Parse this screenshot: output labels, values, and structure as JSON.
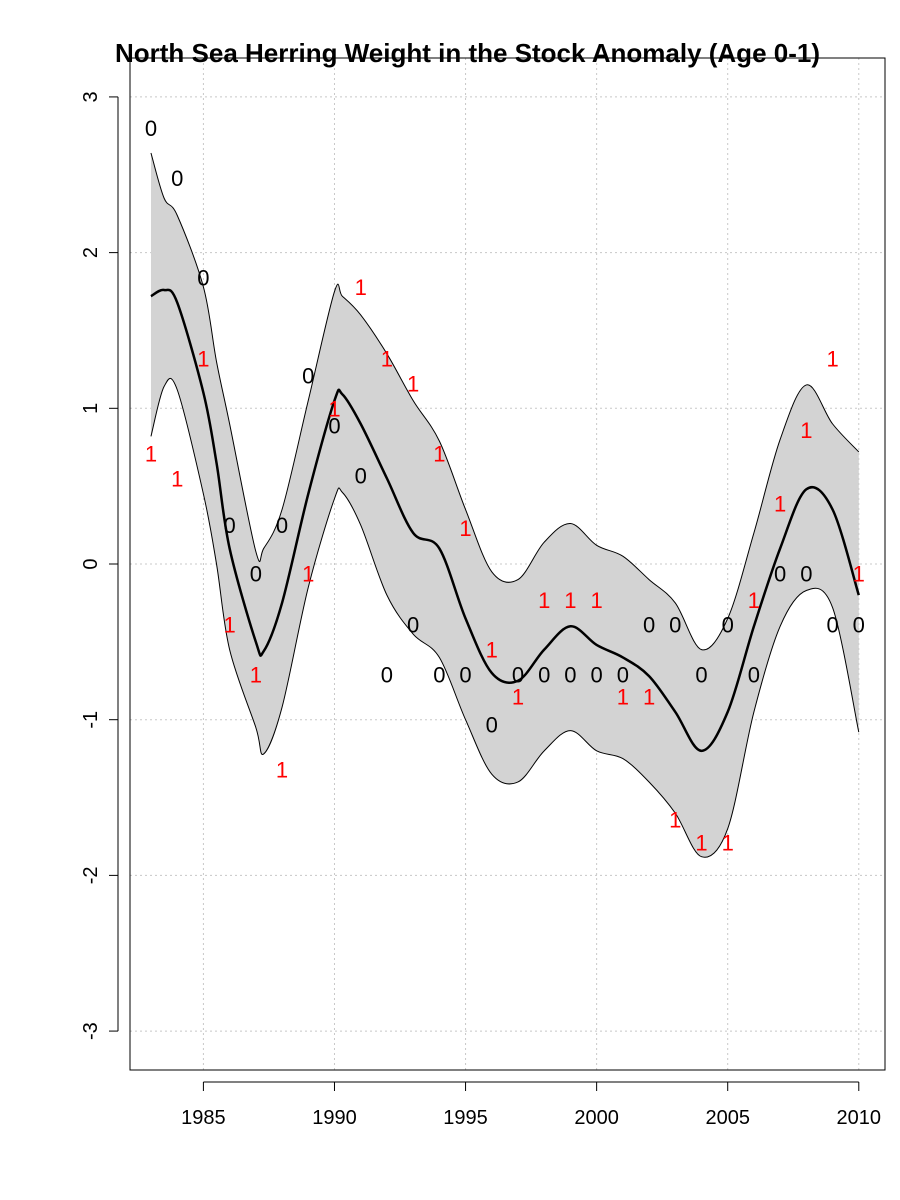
{
  "chart_data": {
    "type": "scatter",
    "title": "North Sea Herring Weight in the Stock Anomaly (Age 0-1)",
    "xlabel": "",
    "ylabel": "",
    "xlim": [
      1982.2,
      2011.0
    ],
    "ylim": [
      -3.25,
      3.25
    ],
    "x_ticks": [
      1985,
      1990,
      1995,
      2000,
      2005,
      2010
    ],
    "y_ticks": [
      -3,
      -2,
      -1,
      0,
      1,
      2,
      3
    ],
    "grid": true,
    "colors": {
      "label_0": "#000000",
      "label_1": "#ff0000",
      "band": "#d3d3d3",
      "grid": "#c8c8c8"
    },
    "series": [
      {
        "label": "0",
        "x": [
          1983,
          1984,
          1985,
          1986,
          1987,
          1988,
          1989,
          1990,
          1991,
          1992,
          1993,
          1994,
          1995,
          1996,
          1997,
          1998,
          1999,
          2000,
          2001,
          2002,
          2003,
          2004,
          2005,
          2006,
          2007,
          2008,
          2009,
          2010
        ],
        "y": [
          2.8,
          2.48,
          1.84,
          0.25,
          -0.06,
          0.25,
          1.21,
          0.89,
          0.57,
          -0.71,
          -0.39,
          -0.71,
          -0.71,
          -1.03,
          -0.71,
          -0.71,
          -0.71,
          -0.71,
          -0.71,
          -0.39,
          -0.39,
          -0.71,
          -0.39,
          -0.71,
          -0.06,
          -0.06,
          -0.39,
          -0.39
        ]
      },
      {
        "label": "1",
        "x": [
          1983,
          1984,
          1985,
          1986,
          1987,
          1988,
          1989,
          1990,
          1991,
          1992,
          1993,
          1994,
          1995,
          1996,
          1997,
          1998,
          1999,
          2000,
          2001,
          2002,
          2003,
          2004,
          2005,
          2006,
          2007,
          2008,
          2009,
          2010
        ],
        "y": [
          0.71,
          0.55,
          1.32,
          -0.39,
          -0.71,
          -1.32,
          -0.06,
          1.0,
          1.78,
          1.32,
          1.16,
          0.71,
          0.23,
          -0.55,
          -0.85,
          -0.23,
          -0.23,
          -0.23,
          -0.85,
          -0.85,
          -1.64,
          -1.79,
          -1.79,
          -0.23,
          0.39,
          0.86,
          1.32,
          -0.06
        ]
      }
    ],
    "smooth": {
      "x": [
        1983,
        1983.5,
        1984,
        1985,
        1985.5,
        1986,
        1987,
        1987.3,
        1988,
        1989,
        1990,
        1990.3,
        1991,
        1992,
        1993,
        1994,
        1995,
        1996,
        1997,
        1998,
        1999,
        2000,
        2001,
        2002,
        2003,
        2004,
        2005,
        2006,
        2007,
        2008,
        2009,
        2010
      ],
      "y": [
        1.72,
        1.76,
        1.68,
        1.1,
        0.65,
        0.1,
        -0.5,
        -0.56,
        -0.25,
        0.45,
        1.05,
        1.09,
        0.9,
        0.55,
        0.2,
        0.1,
        -0.35,
        -0.7,
        -0.75,
        -0.55,
        -0.4,
        -0.52,
        -0.6,
        -0.72,
        -0.95,
        -1.2,
        -0.95,
        -0.4,
        0.1,
        0.48,
        0.35,
        -0.2
      ],
      "upper": [
        2.64,
        2.35,
        2.24,
        1.78,
        1.3,
        0.9,
        0.08,
        0.1,
        0.35,
        1.05,
        1.75,
        1.72,
        1.6,
        1.35,
        1.05,
        0.79,
        0.35,
        -0.05,
        -0.1,
        0.14,
        0.26,
        0.12,
        0.05,
        -0.1,
        -0.25,
        -0.55,
        -0.35,
        0.2,
        0.8,
        1.15,
        0.9,
        0.72
      ],
      "lower": [
        0.82,
        1.14,
        1.12,
        0.45,
        0.0,
        -0.55,
        -1.05,
        -1.22,
        -0.92,
        -0.15,
        0.42,
        0.46,
        0.25,
        -0.2,
        -0.45,
        -0.6,
        -1.0,
        -1.35,
        -1.4,
        -1.2,
        -1.07,
        -1.2,
        -1.25,
        -1.4,
        -1.6,
        -1.88,
        -1.7,
        -0.95,
        -0.4,
        -0.17,
        -0.28,
        -1.08
      ]
    }
  }
}
